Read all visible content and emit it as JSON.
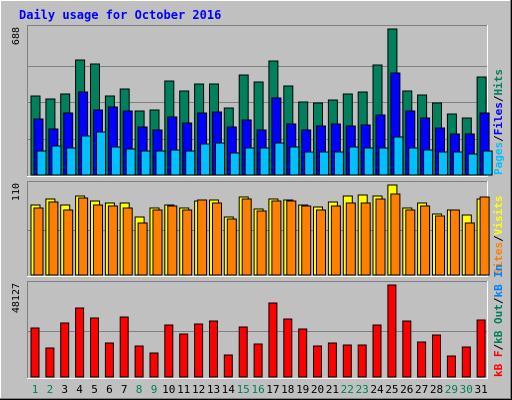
{
  "title": "Daily usage for October 2016",
  "colors": {
    "background": "#c0c0c0",
    "title": "#0000ff",
    "hits": "#00805c",
    "files": "#0000ff",
    "pages": "#00c0ff",
    "visits": "#ffff00",
    "sites": "#ff8000",
    "kbin": "#0080ff",
    "kbout": "#00805c",
    "kbf": "#ff0000"
  },
  "chart_data": [
    {
      "type": "bar",
      "panel": "hits-files-pages",
      "ymax_label": "688",
      "ylim": [
        0,
        688
      ],
      "legend": [
        {
          "key": "pages",
          "text": "Pages"
        },
        {
          "key": "sep",
          "text": "/"
        },
        {
          "key": "files",
          "text": "Files"
        },
        {
          "key": "sep",
          "text": "/"
        },
        {
          "key": "hits",
          "text": "Hits"
        }
      ],
      "categories": [
        1,
        2,
        3,
        4,
        5,
        6,
        7,
        8,
        9,
        10,
        11,
        12,
        13,
        14,
        15,
        16,
        17,
        18,
        19,
        20,
        21,
        22,
        23,
        24,
        25,
        26,
        27,
        28,
        29,
        30,
        31
      ],
      "series": [
        {
          "name": "Hits",
          "color_key": "hits",
          "values": [
            373,
            356,
            381,
            543,
            525,
            370,
            405,
            303,
            307,
            444,
            396,
            429,
            431,
            315,
            470,
            439,
            536,
            420,
            346,
            341,
            355,
            383,
            390,
            519,
            688,
            396,
            376,
            341,
            286,
            268,
            463
          ]
        },
        {
          "name": "Files",
          "color_key": "files",
          "values": [
            264,
            216,
            291,
            389,
            305,
            320,
            303,
            226,
            211,
            274,
            245,
            294,
            298,
            228,
            258,
            214,
            365,
            240,
            212,
            233,
            240,
            233,
            236,
            284,
            483,
            301,
            269,
            222,
            195,
            193,
            292
          ]
        },
        {
          "name": "Pages",
          "color_key": "pages",
          "values": [
            113,
            136,
            127,
            183,
            204,
            131,
            124,
            111,
            113,
            117,
            113,
            145,
            150,
            103,
            127,
            125,
            150,
            130,
            107,
            110,
            107,
            131,
            128,
            127,
            179,
            127,
            117,
            107,
            110,
            97,
            113
          ]
        }
      ]
    },
    {
      "type": "bar",
      "panel": "visits-sites",
      "ymax_label": "110",
      "ylim": [
        0,
        110
      ],
      "legend": [
        {
          "key": "sites",
          "text": "Sites"
        },
        {
          "key": "sep",
          "text": "/"
        },
        {
          "key": "visits",
          "text": "Visits"
        }
      ],
      "categories": [
        1,
        2,
        3,
        4,
        5,
        6,
        7,
        8,
        9,
        10,
        11,
        12,
        13,
        14,
        15,
        16,
        17,
        18,
        19,
        20,
        21,
        22,
        23,
        24,
        25,
        26,
        27,
        28,
        29,
        30,
        31
      ],
      "series": [
        {
          "name": "Visits",
          "color_key": "visits",
          "values": [
            85,
            93,
            85,
            97,
            91,
            88,
            88,
            71,
            82,
            86,
            82,
            91,
            92,
            71,
            95,
            81,
            93,
            92,
            86,
            83,
            89,
            97,
            98,
            97,
            110,
            82,
            88,
            74,
            79,
            73,
            93
          ]
        },
        {
          "name": "Sites",
          "color_key": "sites",
          "values": [
            82,
            89,
            79,
            94,
            85,
            84,
            82,
            64,
            80,
            84,
            79,
            92,
            88,
            68,
            93,
            78,
            90,
            90,
            84,
            80,
            84,
            88,
            88,
            93,
            99,
            79,
            84,
            72,
            79,
            64,
            95
          ]
        }
      ]
    },
    {
      "type": "bar",
      "panel": "kbytes",
      "ymax_label": "48127",
      "ylim": [
        0,
        48127
      ],
      "legend": [
        {
          "key": "kbf",
          "text": "kB F"
        },
        {
          "key": "sep",
          "text": "/"
        },
        {
          "key": "kbout",
          "text": "kB Out"
        },
        {
          "key": "sep",
          "text": "/"
        },
        {
          "key": "kbin",
          "text": "kB In"
        }
      ],
      "categories": [
        1,
        2,
        3,
        4,
        5,
        6,
        7,
        8,
        9,
        10,
        11,
        12,
        13,
        14,
        15,
        16,
        17,
        18,
        19,
        20,
        21,
        22,
        23,
        24,
        25,
        26,
        27,
        28,
        29,
        30,
        31
      ],
      "series": [
        {
          "name": "kB F",
          "color_key": "kbf",
          "values": [
            25800,
            15200,
            28000,
            36300,
            30900,
            18000,
            31300,
            16100,
            12300,
            27000,
            22600,
            27800,
            29400,
            11700,
            26000,
            17300,
            38800,
            30400,
            24900,
            16300,
            18000,
            16900,
            16700,
            27100,
            48127,
            29400,
            18200,
            22200,
            11200,
            15700,
            29900
          ]
        }
      ]
    }
  ],
  "x_labels": [
    {
      "text": "1",
      "color": "#00805c"
    },
    {
      "text": "2",
      "color": "#00805c"
    },
    {
      "text": "3",
      "color": "#000000"
    },
    {
      "text": "4",
      "color": "#000000"
    },
    {
      "text": "5",
      "color": "#000000"
    },
    {
      "text": "6",
      "color": "#000000"
    },
    {
      "text": "7",
      "color": "#000000"
    },
    {
      "text": "8",
      "color": "#00805c"
    },
    {
      "text": "9",
      "color": "#00805c"
    },
    {
      "text": "10",
      "color": "#000000"
    },
    {
      "text": "11",
      "color": "#000000"
    },
    {
      "text": "12",
      "color": "#000000"
    },
    {
      "text": "13",
      "color": "#000000"
    },
    {
      "text": "14",
      "color": "#000000"
    },
    {
      "text": "15",
      "color": "#00805c"
    },
    {
      "text": "16",
      "color": "#00805c"
    },
    {
      "text": "17",
      "color": "#000000"
    },
    {
      "text": "18",
      "color": "#000000"
    },
    {
      "text": "19",
      "color": "#000000"
    },
    {
      "text": "20",
      "color": "#000000"
    },
    {
      "text": "21",
      "color": "#000000"
    },
    {
      "text": "22",
      "color": "#00805c"
    },
    {
      "text": "23",
      "color": "#00805c"
    },
    {
      "text": "24",
      "color": "#000000"
    },
    {
      "text": "25",
      "color": "#000000"
    },
    {
      "text": "26",
      "color": "#000000"
    },
    {
      "text": "27",
      "color": "#000000"
    },
    {
      "text": "28",
      "color": "#000000"
    },
    {
      "text": "29",
      "color": "#00805c"
    },
    {
      "text": "30",
      "color": "#00805c"
    },
    {
      "text": "31",
      "color": "#000000"
    }
  ]
}
